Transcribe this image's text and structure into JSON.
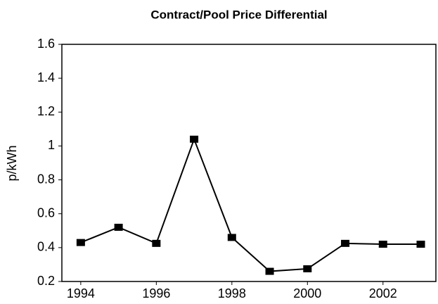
{
  "chart_data": {
    "type": "line",
    "title": "Contract/Pool Price Differential",
    "y_label": "p/kWh",
    "x": [
      1994,
      1995,
      1996,
      1997,
      1998,
      1999,
      2000,
      2001,
      2002,
      2003
    ],
    "series": [
      {
        "name": "Contract/Pool Price Differential",
        "color": "#000000",
        "values": [
          0.43,
          0.52,
          0.425,
          1.04,
          0.46,
          0.26,
          0.275,
          0.425,
          0.42,
          0.42
        ]
      }
    ],
    "xlim": [
      1993.5,
      2003.4
    ],
    "xticks": [
      1994,
      1996,
      1998,
      2000,
      2002
    ],
    "ylim": [
      0.2,
      1.6
    ],
    "yticks": [
      0.2,
      0.4,
      0.6,
      0.8,
      1,
      1.2,
      1.4,
      1.6
    ],
    "grid": false,
    "legend": false
  }
}
